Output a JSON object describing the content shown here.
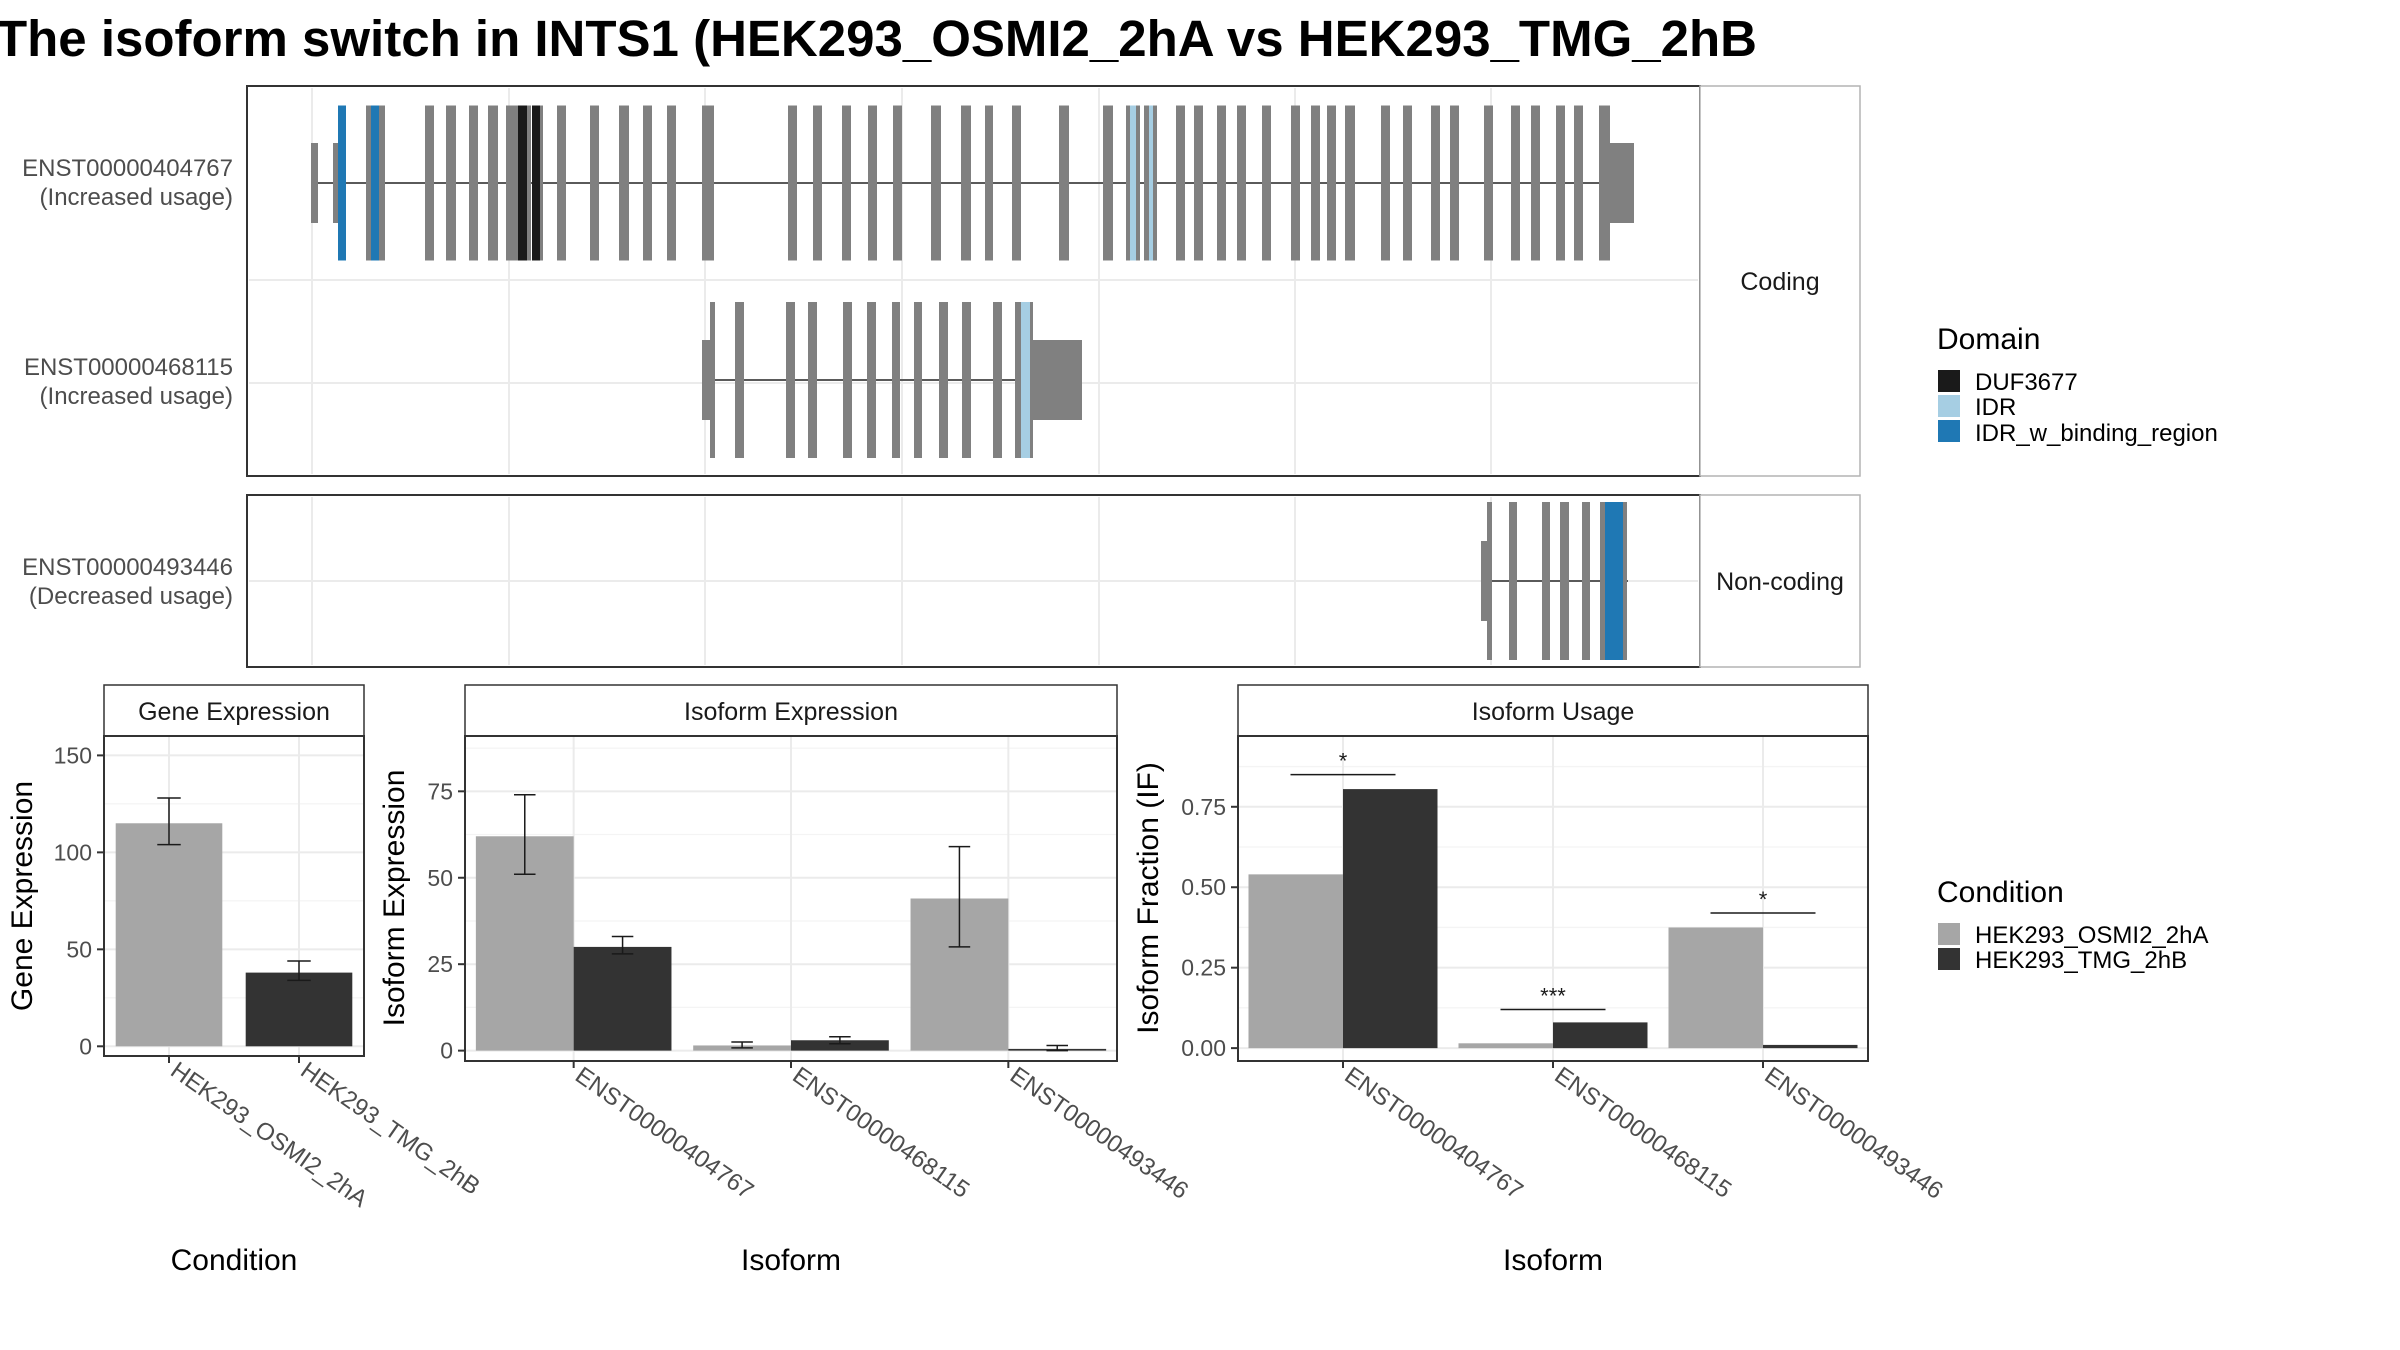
{
  "title": "The isoform switch in INTS1 (HEK293_OSMI2_2hA vs HEK293_TMG_2hB",
  "structure": {
    "groups": [
      {
        "strip": "Coding",
        "transcripts": [
          {
            "id": "ENST00000404767",
            "label": "(Increased usage)"
          },
          {
            "id": "ENST00000468115",
            "label": "(Increased usage)"
          }
        ]
      },
      {
        "strip": "Non-coding",
        "transcripts": [
          {
            "id": "ENST00000493446",
            "label": "(Decreased usage)"
          }
        ]
      }
    ],
    "domain_legend": {
      "title": "Domain",
      "items": [
        {
          "name": "DUF3677",
          "color": "#1a1a1a"
        },
        {
          "name": "IDR",
          "color": "#a6cee3"
        },
        {
          "name": "IDR_w_binding_region",
          "color": "#1f78b4"
        }
      ]
    },
    "exon_color": "#808080"
  },
  "condition_legend": {
    "title": "Condition",
    "items": [
      {
        "name": "HEK293_OSMI2_2hA",
        "color": "#a6a6a6"
      },
      {
        "name": "HEK293_TMG_2hB",
        "color": "#333333"
      }
    ]
  },
  "chart_data": [
    {
      "type": "bar",
      "strip": "Gene Expression",
      "ylabel": "Gene Expression",
      "xlabel": "Condition",
      "categories": [
        "HEK293_OSMI2_2hA",
        "HEK293_TMG_2hB"
      ],
      "values": [
        115,
        38
      ],
      "error": [
        [
          104,
          128
        ],
        [
          34,
          44
        ]
      ],
      "ylim": [
        -5,
        160
      ],
      "yticks": [
        0,
        50,
        100,
        150
      ]
    },
    {
      "type": "bar",
      "strip": "Isoform Expression",
      "ylabel": "Isoform Expression",
      "xlabel": "Isoform",
      "categories": [
        "ENST00000404767",
        "ENST00000468115",
        "ENST00000493446"
      ],
      "series": [
        {
          "name": "HEK293_OSMI2_2hA",
          "values": [
            62,
            1.5,
            44
          ],
          "error": [
            [
              51,
              74
            ],
            [
              0.8,
              2.5
            ],
            [
              30,
              59
            ]
          ]
        },
        {
          "name": "HEK293_TMG_2hB",
          "values": [
            30,
            3,
            0.5
          ],
          "error": [
            [
              28,
              33
            ],
            [
              2,
              4
            ],
            [
              0,
              1.5
            ]
          ]
        }
      ],
      "ylim": [
        -3,
        91
      ],
      "yticks": [
        0,
        25,
        50,
        75
      ]
    },
    {
      "type": "bar",
      "strip": "Isoform Usage",
      "ylabel": "Isoform Fraction (IF)",
      "xlabel": "Isoform",
      "categories": [
        "ENST00000404767",
        "ENST00000468115",
        "ENST00000493446"
      ],
      "series": [
        {
          "name": "HEK293_OSMI2_2hA",
          "values": [
            0.54,
            0.015,
            0.375
          ]
        },
        {
          "name": "HEK293_TMG_2hB",
          "values": [
            0.805,
            0.08,
            0.01
          ]
        }
      ],
      "significance": [
        {
          "label": "*",
          "y": 0.85
        },
        {
          "label": "***",
          "y": 0.12
        },
        {
          "label": "*",
          "y": 0.42
        }
      ],
      "ylim": [
        -0.04,
        0.97
      ],
      "yticks": [
        "0.00",
        "0.25",
        "0.50",
        "0.75"
      ]
    }
  ]
}
